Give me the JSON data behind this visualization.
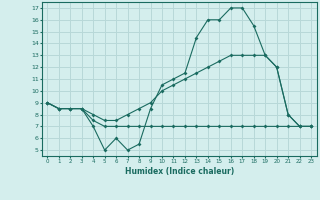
{
  "xlabel": "Humidex (Indice chaleur)",
  "bg_color": "#d4eeed",
  "grid_color": "#b8d8d8",
  "line_color": "#1a6b60",
  "xlim": [
    -0.5,
    23.5
  ],
  "ylim": [
    4.5,
    17.5
  ],
  "xticks": [
    0,
    1,
    2,
    3,
    4,
    5,
    6,
    7,
    8,
    9,
    10,
    11,
    12,
    13,
    14,
    15,
    16,
    17,
    18,
    19,
    20,
    21,
    22,
    23
  ],
  "yticks": [
    5,
    6,
    7,
    8,
    9,
    10,
    11,
    12,
    13,
    14,
    15,
    16,
    17
  ],
  "line1_x": [
    0,
    1,
    2,
    3,
    4,
    5,
    6,
    7,
    8,
    9,
    10,
    11,
    12,
    13,
    14,
    15,
    16,
    17,
    18,
    19,
    20,
    21,
    22,
    23
  ],
  "line1_y": [
    9,
    8.5,
    8.5,
    8.5,
    7,
    5,
    6,
    5,
    5.5,
    8.5,
    10.5,
    11,
    11.5,
    14.5,
    16,
    16,
    17,
    17,
    15.5,
    13,
    12,
    8,
    7,
    7
  ],
  "line2_x": [
    0,
    1,
    2,
    3,
    4,
    5,
    6,
    7,
    8,
    9,
    10,
    11,
    12,
    13,
    14,
    15,
    16,
    17,
    18,
    19,
    20,
    21,
    22,
    23
  ],
  "line2_y": [
    9,
    8.5,
    8.5,
    8.5,
    8,
    7.5,
    7.5,
    8,
    8.5,
    9,
    10,
    10.5,
    11,
    11.5,
    12,
    12.5,
    13,
    13,
    13,
    13,
    12,
    8,
    7,
    7
  ],
  "line3_x": [
    0,
    1,
    2,
    3,
    4,
    5,
    6,
    7,
    8,
    9,
    10,
    11,
    12,
    13,
    14,
    15,
    16,
    17,
    18,
    19,
    20,
    21,
    22,
    23
  ],
  "line3_y": [
    9,
    8.5,
    8.5,
    8.5,
    7.5,
    7,
    7,
    7,
    7,
    7,
    7,
    7,
    7,
    7,
    7,
    7,
    7,
    7,
    7,
    7,
    7,
    7,
    7,
    7
  ]
}
